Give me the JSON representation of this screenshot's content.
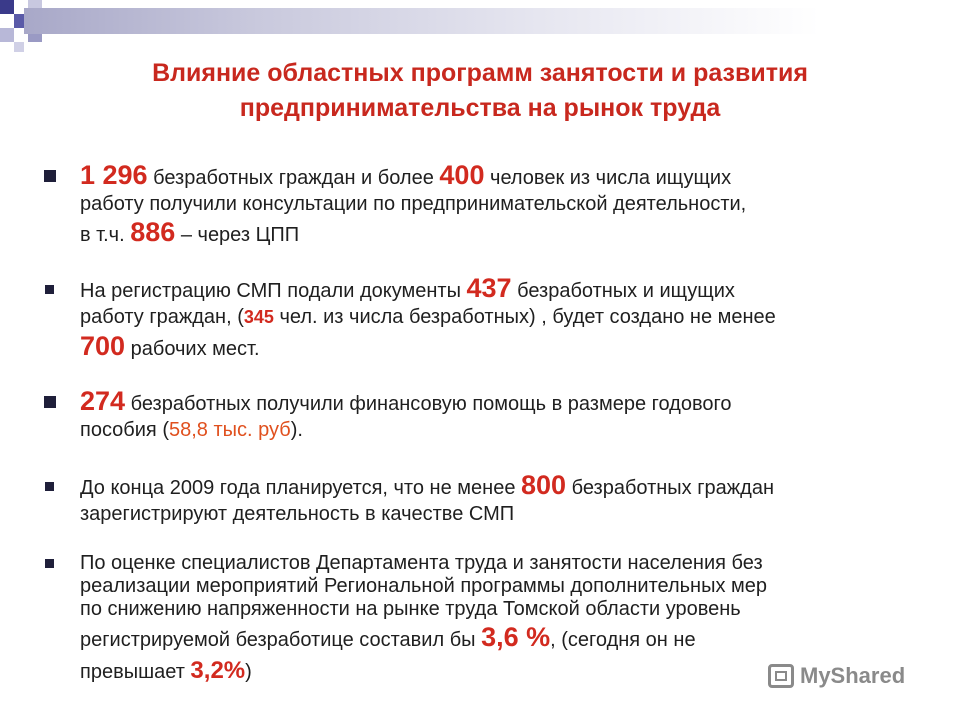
{
  "title": {
    "line1": "Влияние  областных программ занятости и развития",
    "line2": "предпринимательства на рынок труда"
  },
  "items": [
    {
      "n1": "1 296",
      "t1": " безработных граждан и более ",
      "n2": "400",
      "t2": " человек из числа ищущих",
      "l2": "работу получили консультации по предпринимательской деятельности,",
      "l3a": "в т.ч. ",
      "n3": "886",
      "l3b": " – через ЦПП"
    },
    {
      "t1": "На регистрацию СМП подали документы ",
      "n1": "437",
      "t2": " безработных и ищущих",
      "l2a": "работу граждан, (",
      "n2": "345",
      "l2b": " чел. из числа безработных) , будет создано не менее",
      "n3": "700",
      "l3b": " рабочих мест."
    },
    {
      "n1": "274",
      "t1": " безработных получили финансовую помощь в размере годового",
      "l2a": "пособия (",
      "v2": "58,8 тыс. руб",
      "l2b": ")."
    },
    {
      "t1": "До конца 2009 года планируется, что не менее ",
      "n1": "800",
      "t2": " безработных граждан",
      "l2": "зарегистрируют деятельность в качестве СМП"
    },
    {
      "l1": "По оценке специалистов Департамента труда и занятости населения без",
      "l2": "реализации мероприятий Региональной программы дополнительных мер",
      "l3": "по снижению напряженности на рынке труда Томской области уровень",
      "l4a": "регистрируемой безработице составил бы ",
      "n1": "3,6 %",
      "l4b": ", (сегодня он не",
      "l5a": "превышает  ",
      "n2": "3,2%",
      "l5b": ")"
    }
  ],
  "watermark": {
    "text": "MyShared"
  }
}
